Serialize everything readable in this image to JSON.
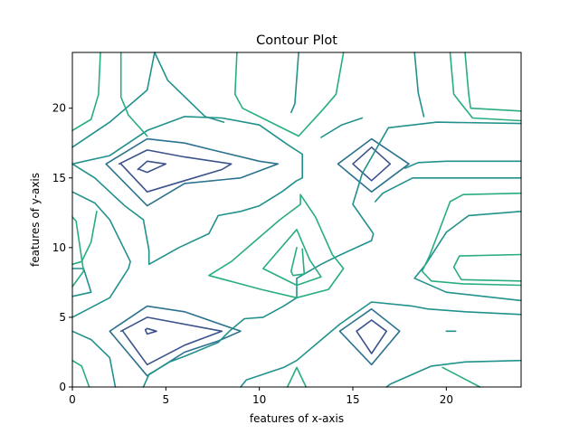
{
  "chart_data": {
    "type": "contour",
    "title": "Contour Plot",
    "xlabel": "features of x-axis",
    "ylabel": "features of y-axis",
    "xlim": [
      0,
      24
    ],
    "ylim": [
      0,
      24
    ],
    "x_ticks": [
      0,
      5,
      10,
      15,
      20
    ],
    "y_ticks": [
      0,
      5,
      10,
      15,
      20
    ],
    "grid": false,
    "legend": "none",
    "level_colors": [
      "#3b528b",
      "#2c728e",
      "#21918c",
      "#27ad81",
      "#5cc863"
    ],
    "contours": [
      {
        "level": 0,
        "points": [
          [
            3.5,
            15.6
          ],
          [
            4,
            16.2
          ],
          [
            5,
            16
          ],
          [
            4,
            15.4
          ],
          [
            3.6,
            15.6
          ]
        ]
      },
      {
        "level": 0,
        "points": [
          [
            2.5,
            16
          ],
          [
            4,
            17
          ],
          [
            6,
            16.5
          ],
          [
            8.5,
            16
          ],
          [
            8,
            15.6
          ],
          [
            6,
            14.8
          ],
          [
            4,
            14
          ],
          [
            2.6,
            16
          ]
        ]
      },
      {
        "level": 0,
        "points": [
          [
            3.9,
            4.1
          ],
          [
            4,
            4.2
          ],
          [
            4.5,
            4
          ],
          [
            4,
            3.8
          ],
          [
            3.9,
            4.1
          ]
        ]
      },
      {
        "level": 0,
        "points": [
          [
            2.6,
            4
          ],
          [
            4,
            5
          ],
          [
            8,
            4
          ],
          [
            6,
            3
          ],
          [
            4,
            1.6
          ],
          [
            2.7,
            4
          ]
        ]
      },
      {
        "level": 0,
        "points": [
          [
            15,
            16
          ],
          [
            16,
            17.2
          ],
          [
            17,
            16
          ],
          [
            16,
            14.8
          ],
          [
            15,
            16
          ]
        ]
      },
      {
        "level": 0,
        "points": [
          [
            15.2,
            4
          ],
          [
            16,
            4.8
          ],
          [
            16.8,
            4
          ],
          [
            16,
            2.4
          ],
          [
            15.2,
            4
          ]
        ]
      },
      {
        "level": 1,
        "points": [
          [
            1.8,
            16
          ],
          [
            4,
            17.8
          ],
          [
            6,
            17.5
          ],
          [
            7.5,
            17
          ],
          [
            10,
            16.2
          ],
          [
            11,
            16
          ],
          [
            9,
            15
          ],
          [
            6,
            14.6
          ],
          [
            4,
            13
          ],
          [
            1.8,
            16
          ]
        ]
      },
      {
        "level": 1,
        "points": [
          [
            2,
            4
          ],
          [
            4,
            5.8
          ],
          [
            6,
            5.4
          ],
          [
            9,
            4
          ],
          [
            7.8,
            3.3
          ],
          [
            6,
            2.5
          ],
          [
            4,
            0.8
          ],
          [
            2,
            4
          ]
        ]
      },
      {
        "level": 1,
        "points": [
          [
            14.2,
            16
          ],
          [
            16,
            17.8
          ],
          [
            18,
            16
          ],
          [
            16,
            14
          ],
          [
            14.2,
            16
          ]
        ]
      },
      {
        "level": 1,
        "points": [
          [
            14.3,
            4
          ],
          [
            16,
            5.6
          ],
          [
            17.5,
            4
          ],
          [
            16,
            1.6
          ],
          [
            14.3,
            4
          ]
        ]
      },
      {
        "level": 2,
        "points": [
          [
            0,
            17.2
          ],
          [
            2,
            19
          ],
          [
            4,
            21.3
          ],
          [
            4.4,
            24
          ]
        ]
      },
      {
        "level": 2,
        "points": [
          [
            0,
            16
          ],
          [
            1.2,
            15
          ],
          [
            2,
            14
          ],
          [
            2.8,
            13
          ],
          [
            3.8,
            12
          ],
          [
            4.1,
            9.8
          ],
          [
            4.1,
            8.8
          ],
          [
            5.7,
            10
          ],
          [
            7.3,
            11
          ],
          [
            7.8,
            12.3
          ],
          [
            9,
            12.6
          ],
          [
            10,
            13
          ],
          [
            11.2,
            14
          ],
          [
            12,
            14.8
          ],
          [
            12.3,
            15
          ],
          [
            12.3,
            16.7
          ],
          [
            11.5,
            17.4
          ],
          [
            10,
            18.8
          ],
          [
            8,
            19.3
          ],
          [
            6,
            19.4
          ],
          [
            4,
            18.4
          ],
          [
            2,
            16.6
          ],
          [
            0,
            16
          ]
        ]
      },
      {
        "level": 2,
        "points": [
          [
            0,
            14
          ],
          [
            1.2,
            13.2
          ],
          [
            2,
            12
          ],
          [
            3.1,
            9
          ],
          [
            3,
            8.5
          ],
          [
            2,
            6.4
          ],
          [
            0,
            5
          ]
        ]
      },
      {
        "level": 2,
        "points": [
          [
            0,
            4
          ],
          [
            1,
            3.4
          ],
          [
            2,
            2.1
          ],
          [
            2.3,
            0
          ]
        ]
      },
      {
        "level": 2,
        "points": [
          [
            0,
            8.5
          ],
          [
            0.6,
            8.5
          ],
          [
            1,
            6.8
          ],
          [
            0,
            6.5
          ]
        ]
      },
      {
        "level": 2,
        "points": [
          [
            3.8,
            0
          ],
          [
            4.1,
            0.9
          ],
          [
            5.2,
            1.8
          ],
          [
            6,
            2.2
          ],
          [
            7.8,
            3.2
          ],
          [
            8.4,
            4
          ],
          [
            9.2,
            4.9
          ],
          [
            10.2,
            5
          ],
          [
            11.3,
            5.8
          ],
          [
            12,
            6.4
          ],
          [
            12,
            7.8
          ],
          [
            13.3,
            8.8
          ],
          [
            14.2,
            9.4
          ],
          [
            16,
            10.5
          ],
          [
            16.1,
            11
          ],
          [
            15,
            13.1
          ],
          [
            15.5,
            15.3
          ],
          [
            16.9,
            18.6
          ],
          [
            19.5,
            19
          ],
          [
            24,
            18.9
          ]
        ]
      },
      {
        "level": 2,
        "points": [
          [
            4.4,
            24
          ],
          [
            5.1,
            22
          ],
          [
            7.1,
            19.4
          ],
          [
            8.1,
            19
          ]
        ]
      },
      {
        "level": 2,
        "points": [
          [
            11.7,
            19.7
          ],
          [
            11.9,
            20.3
          ],
          [
            12.1,
            24
          ]
        ]
      },
      {
        "level": 2,
        "points": [
          [
            13.3,
            17.9
          ],
          [
            14.4,
            18.8
          ],
          [
            15.5,
            19.3
          ]
        ]
      },
      {
        "level": 2,
        "points": [
          [
            20,
            4
          ],
          [
            20.5,
            4
          ]
        ]
      },
      {
        "level": 2,
        "points": [
          [
            24,
            6.2
          ],
          [
            20,
            6.8
          ],
          [
            18.3,
            7.8
          ],
          [
            18.9,
            8.8
          ],
          [
            20,
            11.1
          ],
          [
            21.2,
            12.3
          ],
          [
            24,
            12.6
          ]
        ]
      },
      {
        "level": 2,
        "points": [
          [
            24,
            5.2
          ],
          [
            21,
            5.4
          ],
          [
            19,
            5.6
          ],
          [
            18.2,
            5.8
          ],
          [
            16,
            6.1
          ],
          [
            14.3,
            4.5
          ],
          [
            12,
            1.9
          ],
          [
            11.3,
            1.4
          ],
          [
            9.3,
            0.5
          ],
          [
            9,
            0
          ]
        ]
      },
      {
        "level": 2,
        "points": [
          [
            24,
            1.9
          ],
          [
            21,
            1.8
          ],
          [
            19.2,
            1.5
          ],
          [
            17,
            0.2
          ],
          [
            16.8,
            0
          ]
        ]
      },
      {
        "level": 2,
        "points": [
          [
            24,
            16.2
          ],
          [
            20,
            16.2
          ],
          [
            18.5,
            16.1
          ],
          [
            17.8,
            15.7
          ]
        ]
      },
      {
        "level": 2,
        "points": [
          [
            24,
            15
          ],
          [
            18.2,
            15
          ],
          [
            16.6,
            13.9
          ],
          [
            16.2,
            13.3
          ]
        ]
      },
      {
        "level": 2,
        "points": [
          [
            18.3,
            24
          ],
          [
            18.5,
            21.1
          ],
          [
            18.8,
            19.4
          ]
        ]
      },
      {
        "level": 3,
        "points": [
          [
            0,
            18.4
          ],
          [
            1,
            19.2
          ],
          [
            1.4,
            21
          ],
          [
            1.5,
            24
          ]
        ]
      },
      {
        "level": 3,
        "points": [
          [
            2.6,
            24
          ],
          [
            2.6,
            20.8
          ],
          [
            3,
            19.5
          ],
          [
            4,
            18
          ]
        ]
      },
      {
        "level": 3,
        "points": [
          [
            8.8,
            24
          ],
          [
            8.7,
            21
          ],
          [
            9.1,
            20
          ],
          [
            12.1,
            18
          ],
          [
            13.4,
            19.9
          ],
          [
            14.1,
            21
          ],
          [
            14.5,
            24
          ]
        ]
      },
      {
        "level": 3,
        "points": [
          [
            12,
            10
          ],
          [
            11.7,
            8.3
          ],
          [
            11.8,
            8
          ],
          [
            12.4,
            8.1
          ],
          [
            12.3,
            9.9
          ]
        ]
      },
      {
        "level": 3,
        "points": [
          [
            10.2,
            8.5
          ],
          [
            12,
            11.3
          ],
          [
            12.7,
            9.1
          ],
          [
            13.3,
            7.9
          ],
          [
            12,
            7.3
          ],
          [
            10.2,
            8.5
          ]
        ]
      },
      {
        "level": 3,
        "points": [
          [
            7.3,
            8
          ],
          [
            8.5,
            9
          ],
          [
            9.8,
            10.5
          ],
          [
            11.1,
            12
          ],
          [
            12.2,
            13.1
          ],
          [
            12.2,
            13.8
          ],
          [
            13,
            12.2
          ],
          [
            13.9,
            9.5
          ],
          [
            14.5,
            8.5
          ],
          [
            13.7,
            7
          ],
          [
            12,
            6.4
          ],
          [
            10.1,
            7
          ],
          [
            7.3,
            8
          ]
        ]
      },
      {
        "level": 3,
        "points": [
          [
            0,
            8.8
          ],
          [
            0.5,
            9
          ],
          [
            1,
            10.4
          ],
          [
            1.3,
            12.6
          ]
        ]
      },
      {
        "level": 3,
        "points": [
          [
            0,
            12.2
          ],
          [
            0.2,
            11.9
          ],
          [
            0.6,
            8.3
          ],
          [
            0,
            7.2
          ]
        ]
      },
      {
        "level": 3,
        "points": [
          [
            0,
            1.9
          ],
          [
            0.5,
            1.5
          ],
          [
            0.9,
            0
          ]
        ]
      },
      {
        "level": 3,
        "points": [
          [
            11.5,
            0
          ],
          [
            12,
            1.4
          ],
          [
            12.5,
            0
          ]
        ]
      },
      {
        "level": 3,
        "points": [
          [
            19.8,
            1.4
          ],
          [
            21.8,
            0
          ]
        ]
      },
      {
        "level": 3,
        "points": [
          [
            21,
            24
          ],
          [
            21.2,
            21
          ],
          [
            21.3,
            20
          ],
          [
            24,
            19.8
          ]
        ]
      },
      {
        "level": 3,
        "points": [
          [
            20.2,
            24
          ],
          [
            20.4,
            21
          ],
          [
            21.4,
            19.3
          ],
          [
            24,
            19.1
          ]
        ]
      },
      {
        "level": 3,
        "points": [
          [
            24,
            9.5
          ],
          [
            20.7,
            9.4
          ],
          [
            20.4,
            8.6
          ],
          [
            20.8,
            7.7
          ],
          [
            24,
            7.6
          ]
        ]
      },
      {
        "level": 3,
        "points": [
          [
            24,
            13.9
          ],
          [
            20.9,
            13.8
          ],
          [
            20.2,
            13.3
          ],
          [
            19.7,
            11.5
          ],
          [
            19.1,
            9.4
          ],
          [
            18.7,
            8.3
          ],
          [
            19.2,
            7.6
          ],
          [
            20.9,
            7.4
          ],
          [
            24,
            7.3
          ]
        ]
      }
    ]
  }
}
